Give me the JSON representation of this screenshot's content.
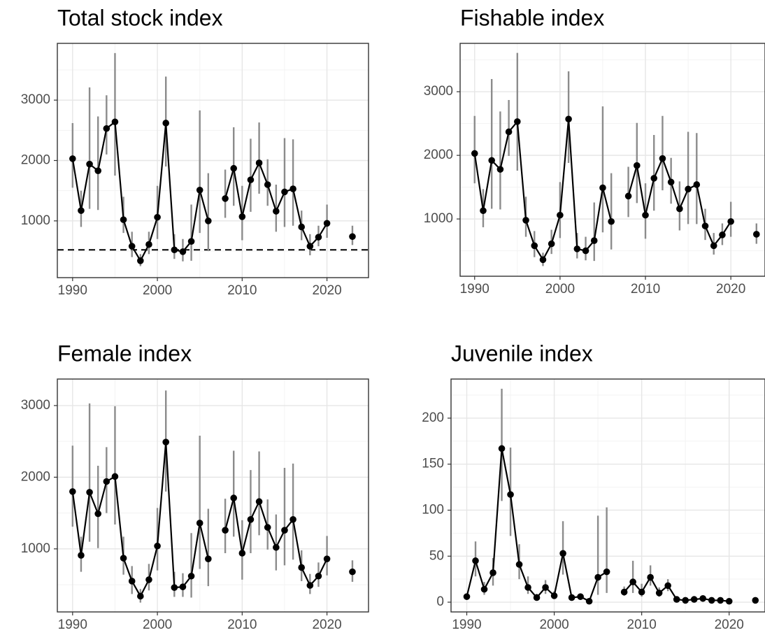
{
  "chart_data": [
    {
      "type": "line",
      "title": "Total stock index",
      "color": "#000000",
      "error_color": "#8c8c8c",
      "grid": true,
      "x": [
        1990,
        1991,
        1992,
        1993,
        1994,
        1995,
        1996,
        1997,
        1998,
        1999,
        2000,
        2001,
        2002,
        2003,
        2004,
        2005,
        2006,
        2007,
        2008,
        2009,
        2010,
        2011,
        2012,
        2013,
        2014,
        2015,
        2016,
        2017,
        2018,
        2019,
        2020,
        2021,
        2022,
        2023
      ],
      "values": [
        2030,
        1170,
        1940,
        1830,
        2530,
        2640,
        1020,
        580,
        340,
        610,
        1060,
        2620,
        520,
        490,
        660,
        1510,
        1000,
        null,
        1370,
        1870,
        1070,
        1680,
        1960,
        1600,
        1160,
        1480,
        1530,
        900,
        580,
        730,
        960,
        null,
        null,
        740
      ],
      "lower": [
        1550,
        900,
        1200,
        1180,
        2100,
        1750,
        800,
        400,
        250,
        450,
        700,
        1900,
        370,
        330,
        340,
        800,
        500,
        null,
        1050,
        1250,
        680,
        1150,
        1450,
        1250,
        820,
        900,
        920,
        680,
        430,
        580,
        720,
        null,
        null,
        600
      ],
      "upper": [
        2620,
        1500,
        3210,
        2730,
        3080,
        3780,
        1400,
        820,
        450,
        820,
        1580,
        3390,
        780,
        700,
        1270,
        2830,
        1790,
        null,
        1850,
        2550,
        1580,
        2360,
        2630,
        2020,
        1600,
        2370,
        2350,
        1170,
        780,
        920,
        1270,
        null,
        null,
        920
      ],
      "hline": 520,
      "hline_style": "dashed",
      "xlim": [
        1988.2,
        2024.9
      ],
      "xticks": [
        1990,
        2000,
        2010,
        2020
      ],
      "ylim": [
        60,
        3940
      ],
      "yticks": [
        1000,
        2000,
        3000
      ]
    },
    {
      "type": "line",
      "title": "Fishable index",
      "color": "#000000",
      "error_color": "#8c8c8c",
      "grid": true,
      "x": [
        1990,
        1991,
        1992,
        1993,
        1994,
        1995,
        1996,
        1997,
        1998,
        1999,
        2000,
        2001,
        2002,
        2003,
        2004,
        2005,
        2006,
        2007,
        2008,
        2009,
        2010,
        2011,
        2012,
        2013,
        2014,
        2015,
        2016,
        2017,
        2018,
        2019,
        2020,
        2021,
        2022,
        2023
      ],
      "values": [
        2030,
        1130,
        1920,
        1780,
        2370,
        2530,
        980,
        580,
        360,
        610,
        1060,
        2570,
        530,
        500,
        660,
        1490,
        960,
        null,
        1360,
        1840,
        1060,
        1640,
        1950,
        1580,
        1160,
        1470,
        1540,
        890,
        580,
        750,
        960,
        null,
        null,
        760
      ],
      "lower": [
        1560,
        870,
        1160,
        1150,
        1990,
        1760,
        720,
        400,
        260,
        450,
        700,
        1880,
        380,
        350,
        340,
        790,
        520,
        null,
        1030,
        1250,
        690,
        1130,
        1450,
        1240,
        820,
        920,
        920,
        670,
        440,
        590,
        720,
        null,
        null,
        610
      ],
      "upper": [
        2620,
        1470,
        3200,
        2690,
        2870,
        3610,
        1350,
        810,
        470,
        830,
        1580,
        3320,
        780,
        720,
        1260,
        2770,
        1720,
        null,
        1820,
        2510,
        1560,
        2320,
        2620,
        1960,
        1590,
        2370,
        2350,
        1160,
        780,
        930,
        1270,
        null,
        null,
        930
      ],
      "xlim": [
        1988.3,
        2024.0
      ],
      "xticks": [
        1990,
        2000,
        2010,
        2020
      ],
      "ylim": [
        100,
        3760
      ],
      "yticks": [
        1000,
        2000,
        3000
      ]
    },
    {
      "type": "line",
      "title": "Female index",
      "color": "#000000",
      "error_color": "#8c8c8c",
      "grid": true,
      "x": [
        1990,
        1991,
        1992,
        1993,
        1994,
        1995,
        1996,
        1997,
        1998,
        1999,
        2000,
        2001,
        2002,
        2003,
        2004,
        2005,
        2006,
        2007,
        2008,
        2009,
        2010,
        2011,
        2012,
        2013,
        2014,
        2015,
        2016,
        2017,
        2018,
        2019,
        2020,
        2021,
        2022,
        2023
      ],
      "values": [
        1800,
        910,
        1790,
        1490,
        1940,
        2010,
        870,
        550,
        340,
        570,
        1040,
        2490,
        460,
        470,
        620,
        1360,
        860,
        null,
        1260,
        1710,
        940,
        1410,
        1660,
        1300,
        1020,
        1260,
        1410,
        740,
        490,
        620,
        860,
        null,
        null,
        680
      ],
      "lower": [
        1310,
        680,
        1100,
        1010,
        1500,
        1340,
        640,
        370,
        250,
        420,
        700,
        1800,
        330,
        330,
        320,
        720,
        480,
        null,
        940,
        1170,
        570,
        940,
        1190,
        990,
        700,
        770,
        850,
        550,
        370,
        470,
        630,
        null,
        null,
        540
      ],
      "upper": [
        2440,
        1170,
        3030,
        2160,
        2420,
        2990,
        1170,
        760,
        440,
        790,
        1570,
        3210,
        680,
        660,
        1220,
        2580,
        1560,
        null,
        1700,
        2370,
        1400,
        2100,
        2360,
        1690,
        1480,
        2130,
        2190,
        980,
        650,
        810,
        1180,
        null,
        null,
        840
      ],
      "xlim": [
        1988.2,
        2024.9
      ],
      "xticks": [
        1990,
        2000,
        2010,
        2020
      ],
      "ylim": [
        120,
        3370
      ],
      "yticks": [
        1000,
        2000,
        3000
      ]
    },
    {
      "type": "line",
      "title": "Juvenile index",
      "color": "#000000",
      "error_color": "#8c8c8c",
      "grid": true,
      "x": [
        1990,
        1991,
        1992,
        1993,
        1994,
        1995,
        1996,
        1997,
        1998,
        1999,
        2000,
        2001,
        2002,
        2003,
        2004,
        2005,
        2006,
        2007,
        2008,
        2009,
        2010,
        2011,
        2012,
        2013,
        2014,
        2015,
        2016,
        2017,
        2018,
        2019,
        2020,
        2021,
        2022,
        2023
      ],
      "values": [
        6,
        45,
        14,
        32,
        167,
        117,
        41,
        16,
        5,
        16,
        7,
        53,
        5,
        6,
        1,
        27,
        33,
        null,
        11,
        22,
        11,
        27,
        10,
        18,
        3,
        2,
        3,
        4,
        2,
        2,
        1,
        null,
        null,
        2
      ],
      "lower": [
        4,
        28,
        8,
        18,
        110,
        72,
        25,
        9,
        3,
        9,
        4,
        30,
        3,
        3,
        0,
        8,
        10,
        null,
        7,
        10,
        6,
        18,
        6,
        12,
        2,
        1,
        2,
        2,
        1,
        1,
        0,
        null,
        null,
        1
      ],
      "upper": [
        9,
        66,
        22,
        48,
        232,
        168,
        63,
        28,
        9,
        24,
        12,
        88,
        8,
        9,
        4,
        94,
        103,
        null,
        17,
        45,
        20,
        40,
        16,
        25,
        5,
        4,
        5,
        6,
        3,
        3,
        2,
        null,
        null,
        3
      ],
      "xlim": [
        1988.2,
        2024.1
      ],
      "xticks": [
        1990,
        2000,
        2010,
        2020
      ],
      "ylim": [
        -10.6,
        242.5
      ],
      "yticks": [
        0,
        50,
        100,
        150,
        200
      ]
    }
  ]
}
